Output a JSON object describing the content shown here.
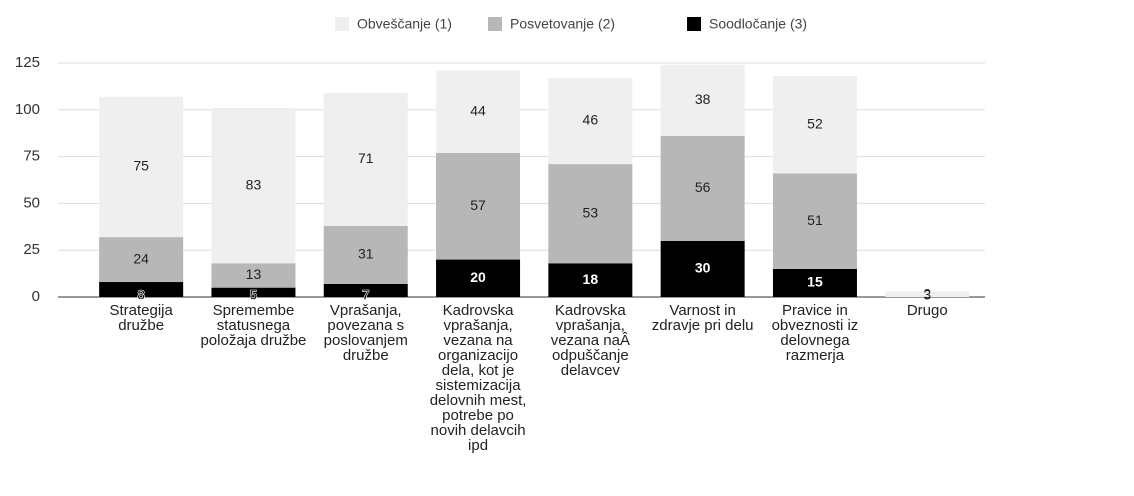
{
  "chart_data": {
    "type": "stacked_bar",
    "categories": [
      "Strategija družbe",
      "Spremembe statusnega položaja družbe",
      "Vprašanja, povezana s poslovanjem družbe",
      "Kadrovska vprašanja, vezana na organizacijo dela, kot je sistemizacija delovnih mest, potrebe po novih delavcih ipd",
      "Kadrovska vprašanja, vezana naÂ odpuščanje delavcev",
      "Varnost in zdravje pri delu",
      "Pravice in obveznosti iz delovnega razmerja",
      "Drugo"
    ],
    "series": [
      {
        "name": "Soodločanje (3)",
        "color": "#000000",
        "values": [
          8,
          5,
          7,
          20,
          18,
          30,
          15,
          0
        ]
      },
      {
        "name": "Posvetovanje (2)",
        "color": "#b7b7b7",
        "values": [
          24,
          13,
          31,
          57,
          53,
          56,
          51,
          0
        ]
      },
      {
        "name": "Obveščanje (1)",
        "color": "#efefef",
        "values": [
          75,
          83,
          71,
          44,
          46,
          38,
          52,
          3
        ]
      }
    ],
    "legend_order": [
      2,
      1,
      0
    ],
    "ylim": [
      0,
      125
    ],
    "yticks": [
      0,
      25,
      50,
      75,
      100,
      125
    ],
    "grid": true
  }
}
